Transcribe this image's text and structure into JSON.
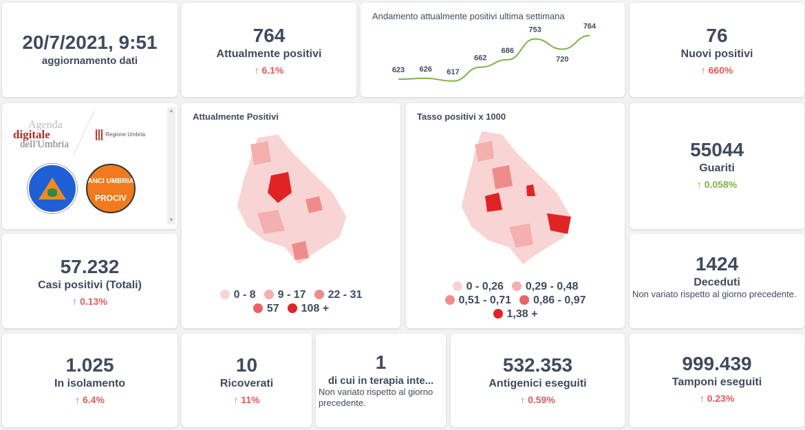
{
  "update": {
    "value": "20/7/2021, 9:51",
    "label": "aggiornamento dati"
  },
  "attuali": {
    "value": "764",
    "label": "Attualmente positivi",
    "change": "↑ 6.1%"
  },
  "trend": {
    "title": "Andamento attualmente positivi ultima settimana"
  },
  "nuovi": {
    "value": "76",
    "label": "Nuovi positivi",
    "change": "↑ 660%"
  },
  "logos": {
    "agenda": "Agenda",
    "digitale": "digitale",
    "umbria": "dell'Umbria",
    "regione": "Regione Umbria",
    "protezione": "Protezione Civile",
    "anci": "ANCI UMBRIA",
    "prociv": "PROCIV"
  },
  "map1": {
    "title": "Attualmente Positivi",
    "legend": [
      {
        "label": "0 - 8",
        "color": "#f8d4d4"
      },
      {
        "label": "9 - 17",
        "color": "#f4afaf"
      },
      {
        "label": "22 - 31",
        "color": "#ee8c8c"
      },
      {
        "label": "57",
        "color": "#e86464"
      },
      {
        "label": "108 +",
        "color": "#e02424"
      }
    ]
  },
  "map2": {
    "title": "Tasso positivi x 1000",
    "legend": [
      {
        "label": "0 - 0,26",
        "color": "#f8d4d4"
      },
      {
        "label": "0,29 - 0,48",
        "color": "#f4afaf"
      },
      {
        "label": "0,51 - 0,71",
        "color": "#ee8c8c"
      },
      {
        "label": "0,86 - 0,97",
        "color": "#e86464"
      },
      {
        "label": "1,38 +",
        "color": "#e02424"
      }
    ]
  },
  "guariti": {
    "value": "55044",
    "label": "Guariti",
    "change": "↑ 0.058%"
  },
  "casi": {
    "value": "57.232",
    "label": "Casi positivi (Totali)",
    "change": "↑ 0.13%"
  },
  "deceduti": {
    "value": "1424",
    "label": "Deceduti",
    "note": "Non variato rispetto al giorno precedente."
  },
  "isolamento": {
    "value": "1.025",
    "label": "In isolamento",
    "change": "↑ 6.4%"
  },
  "ricoverati": {
    "value": "10",
    "label": "Ricoverati",
    "change": "↑ 11%"
  },
  "terapia": {
    "value": "1",
    "label": "di cui in terapia inte...",
    "note": "Non variato rispetto al giorno precedente."
  },
  "antigenici": {
    "value": "532.353",
    "label": "Antigenici eseguiti",
    "change": "↑ 0.59%"
  },
  "tamponi": {
    "value": "999.439",
    "label": "Tamponi eseguiti",
    "change": "↑ 0.23%"
  },
  "chart_data": {
    "type": "line",
    "title": "Andamento attualmente positivi ultima settimana",
    "values": [
      623,
      626,
      617,
      662,
      686,
      753,
      720,
      764
    ],
    "color": "#7cb342"
  }
}
